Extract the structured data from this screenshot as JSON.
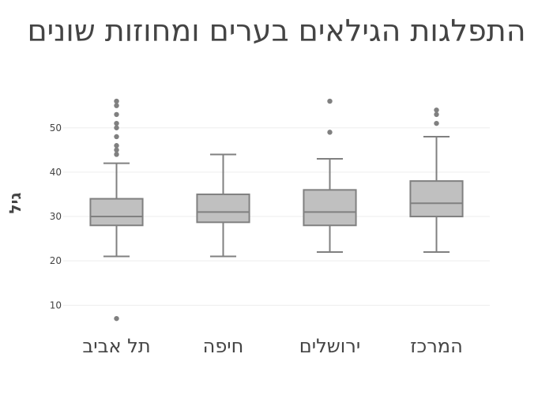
{
  "chart_data": {
    "type": "box",
    "title": "התפלגות הגילאים בערים ומחוזות שונים",
    "xlabel": "",
    "ylabel": "גיל",
    "ylim": [
      4,
      61
    ],
    "yticks": [
      10,
      20,
      30,
      40,
      50
    ],
    "grid": true,
    "legend": "none",
    "colors": {
      "box_fill": "#c0c0c0",
      "box_line": "#808080",
      "outlier": "#808080",
      "grid": "#eeeeee"
    },
    "categories": [
      "תל אביב",
      "חיפה",
      "ירושלים",
      "המרכז"
    ],
    "boxes": [
      {
        "min": 21,
        "q1": 28,
        "median": 30,
        "q3": 34,
        "max": 42,
        "outliers": [
          7,
          44,
          45,
          46,
          48,
          50,
          51,
          53,
          55,
          56
        ]
      },
      {
        "min": 21,
        "q1": 28.7,
        "median": 31,
        "q3": 35,
        "max": 44,
        "outliers": []
      },
      {
        "min": 22,
        "q1": 28,
        "median": 31,
        "q3": 36,
        "max": 43,
        "outliers": [
          49,
          56
        ]
      },
      {
        "min": 22,
        "q1": 30,
        "median": 33,
        "q3": 38,
        "max": 48,
        "outliers": [
          51,
          53,
          54
        ]
      }
    ]
  }
}
